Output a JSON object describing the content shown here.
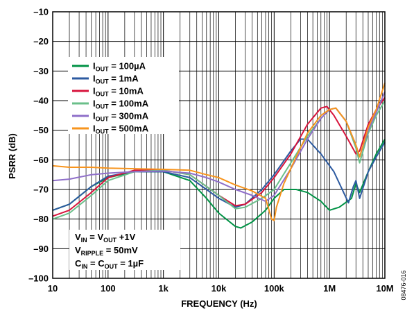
{
  "chart_data": {
    "type": "line",
    "xlabel": "FREQUENCY (Hz)",
    "ylabel": "PSRR (dB)",
    "x_scale": "log",
    "xlim": [
      10,
      10000000
    ],
    "ylim": [
      -100,
      -10
    ],
    "grid": true,
    "legend_position": "top-left",
    "x_ticks": [
      {
        "value": 10,
        "label": "10"
      },
      {
        "value": 100,
        "label": "100"
      },
      {
        "value": 1000,
        "label": "1k"
      },
      {
        "value": 10000,
        "label": "10k"
      },
      {
        "value": 100000,
        "label": "100k"
      },
      {
        "value": 1000000,
        "label": "1M"
      },
      {
        "value": 10000000,
        "label": "10M"
      }
    ],
    "y_ticks": [
      {
        "value": -10,
        "label": "–10"
      },
      {
        "value": -20,
        "label": "–20"
      },
      {
        "value": -30,
        "label": "–30"
      },
      {
        "value": -40,
        "label": "–40"
      },
      {
        "value": -50,
        "label": "–50"
      },
      {
        "value": -60,
        "label": "–60"
      },
      {
        "value": -70,
        "label": "–70"
      },
      {
        "value": -80,
        "label": "–80"
      },
      {
        "value": -90,
        "label": "–90"
      },
      {
        "value": -100,
        "label": "–100"
      }
    ],
    "series": [
      {
        "name": "IOUT = 100µA",
        "label_main": "I",
        "label_sub": "OUT",
        "label_rest": " = 100µA",
        "color": "#009245",
        "points": [
          [
            10,
            -77
          ],
          [
            20,
            -75
          ],
          [
            50,
            -69
          ],
          [
            100,
            -66
          ],
          [
            300,
            -64
          ],
          [
            1000,
            -64
          ],
          [
            3000,
            -67
          ],
          [
            6000,
            -73
          ],
          [
            10000,
            -78
          ],
          [
            20000,
            -82.5
          ],
          [
            25000,
            -83
          ],
          [
            40000,
            -81
          ],
          [
            70000,
            -77
          ],
          [
            100000,
            -73
          ],
          [
            150000,
            -70
          ],
          [
            250000,
            -70
          ],
          [
            400000,
            -71
          ],
          [
            700000,
            -74
          ],
          [
            1000000,
            -77
          ],
          [
            1500000,
            -76
          ],
          [
            2500000,
            -73
          ],
          [
            3000000,
            -68
          ],
          [
            3500000,
            -71
          ],
          [
            5000000,
            -64
          ],
          [
            7000000,
            -58
          ],
          [
            10000000,
            -53
          ]
        ]
      },
      {
        "name": "IOUT = 1mA",
        "label_main": "I",
        "label_sub": "OUT",
        "label_rest": " = 1mA",
        "color": "#2c5aa0",
        "points": [
          [
            10,
            -77
          ],
          [
            20,
            -75
          ],
          [
            50,
            -69
          ],
          [
            100,
            -65.5
          ],
          [
            300,
            -64
          ],
          [
            1000,
            -64
          ],
          [
            3000,
            -66
          ],
          [
            6000,
            -70
          ],
          [
            10000,
            -73
          ],
          [
            20000,
            -76
          ],
          [
            30000,
            -75
          ],
          [
            60000,
            -70
          ],
          [
            100000,
            -65
          ],
          [
            200000,
            -57
          ],
          [
            300000,
            -53
          ],
          [
            400000,
            -53
          ],
          [
            700000,
            -58
          ],
          [
            1200000,
            -64
          ],
          [
            1800000,
            -71
          ],
          [
            2200000,
            -74.5
          ],
          [
            2700000,
            -69
          ],
          [
            3000000,
            -67
          ],
          [
            3500000,
            -73
          ],
          [
            5000000,
            -64
          ],
          [
            7000000,
            -59
          ],
          [
            10000000,
            -54
          ]
        ]
      },
      {
        "name": "IOUT = 10mA",
        "label_main": "I",
        "label_sub": "OUT",
        "label_rest": " = 10mA",
        "color": "#d7143c",
        "points": [
          [
            10,
            -79
          ],
          [
            20,
            -77
          ],
          [
            50,
            -71
          ],
          [
            100,
            -66
          ],
          [
            300,
            -63.5
          ],
          [
            1000,
            -63.5
          ],
          [
            3000,
            -65
          ],
          [
            6000,
            -69
          ],
          [
            10000,
            -72
          ],
          [
            20000,
            -75.5
          ],
          [
            30000,
            -75
          ],
          [
            60000,
            -71
          ],
          [
            100000,
            -66
          ],
          [
            200000,
            -58
          ],
          [
            400000,
            -48
          ],
          [
            700000,
            -42.5
          ],
          [
            900000,
            -42
          ],
          [
            1200000,
            -45
          ],
          [
            2000000,
            -52
          ],
          [
            3000000,
            -58
          ],
          [
            3500000,
            -57
          ],
          [
            5000000,
            -48
          ],
          [
            7000000,
            -43
          ],
          [
            10000000,
            -39
          ]
        ]
      },
      {
        "name": "IOUT = 100mA",
        "label_main": "I",
        "label_sub": "OUT",
        "label_rest": " = 100mA",
        "color": "#6abf8a",
        "points": [
          [
            10,
            -80
          ],
          [
            20,
            -78
          ],
          [
            50,
            -72
          ],
          [
            100,
            -67
          ],
          [
            300,
            -64
          ],
          [
            1000,
            -63.5
          ],
          [
            3000,
            -65
          ],
          [
            6000,
            -69
          ],
          [
            10000,
            -72
          ],
          [
            20000,
            -76.5
          ],
          [
            30000,
            -76
          ],
          [
            60000,
            -73
          ],
          [
            100000,
            -70
          ],
          [
            200000,
            -61
          ],
          [
            400000,
            -52
          ],
          [
            700000,
            -46
          ],
          [
            1000000,
            -43
          ],
          [
            1300000,
            -42.5
          ],
          [
            2000000,
            -47
          ],
          [
            3000000,
            -56
          ],
          [
            3500000,
            -61
          ],
          [
            5000000,
            -51
          ],
          [
            7000000,
            -45
          ],
          [
            10000000,
            -40
          ]
        ]
      },
      {
        "name": "IOUT = 300mA",
        "label_main": "I",
        "label_sub": "OUT",
        "label_rest": " = 300mA",
        "color": "#8f6fc9",
        "points": [
          [
            10,
            -67
          ],
          [
            20,
            -66.5
          ],
          [
            50,
            -65
          ],
          [
            100,
            -64.5
          ],
          [
            300,
            -64
          ],
          [
            1000,
            -63.8
          ],
          [
            3000,
            -64.5
          ],
          [
            6000,
            -66
          ],
          [
            10000,
            -67.5
          ],
          [
            20000,
            -70
          ],
          [
            40000,
            -72
          ],
          [
            70000,
            -74
          ],
          [
            100000,
            -72
          ],
          [
            200000,
            -63
          ],
          [
            400000,
            -53
          ],
          [
            700000,
            -46
          ],
          [
            1000000,
            -43
          ],
          [
            1300000,
            -42.5
          ],
          [
            2000000,
            -47
          ],
          [
            3000000,
            -55
          ],
          [
            3500000,
            -59
          ],
          [
            5000000,
            -50
          ],
          [
            7000000,
            -44
          ],
          [
            10000000,
            -37
          ]
        ]
      },
      {
        "name": "IOUT = 500mA",
        "label_main": "I",
        "label_sub": "OUT",
        "label_rest": " = 500mA",
        "color": "#f7941d",
        "points": [
          [
            10,
            -62
          ],
          [
            20,
            -62.5
          ],
          [
            50,
            -62.5
          ],
          [
            100,
            -62.8
          ],
          [
            300,
            -63
          ],
          [
            1000,
            -63.2
          ],
          [
            3000,
            -63.5
          ],
          [
            6000,
            -65
          ],
          [
            10000,
            -66
          ],
          [
            20000,
            -68.5
          ],
          [
            40000,
            -70.5
          ],
          [
            70000,
            -73
          ],
          [
            90000,
            -80
          ],
          [
            100000,
            -80.5
          ],
          [
            110000,
            -76
          ],
          [
            150000,
            -68
          ],
          [
            250000,
            -59
          ],
          [
            400000,
            -51
          ],
          [
            700000,
            -45
          ],
          [
            1000000,
            -43
          ],
          [
            1300000,
            -42.5
          ],
          [
            2000000,
            -47
          ],
          [
            3000000,
            -55
          ],
          [
            3500000,
            -59
          ],
          [
            5000000,
            -49
          ],
          [
            7000000,
            -43
          ],
          [
            10000000,
            -34
          ]
        ]
      }
    ],
    "conditions": [
      {
        "main": "V",
        "sub": "IN",
        "rest": " = V",
        "sub2": "OUT",
        "rest2": " +1V"
      },
      {
        "main": "V",
        "sub": "RIPPLE",
        "rest": " = 50mV",
        "sub2": "",
        "rest2": ""
      },
      {
        "main": "C",
        "sub": "IN",
        "rest": " = C",
        "sub2": "OUT",
        "rest2": " = 1µF"
      }
    ],
    "figure_id": "08476-016"
  }
}
